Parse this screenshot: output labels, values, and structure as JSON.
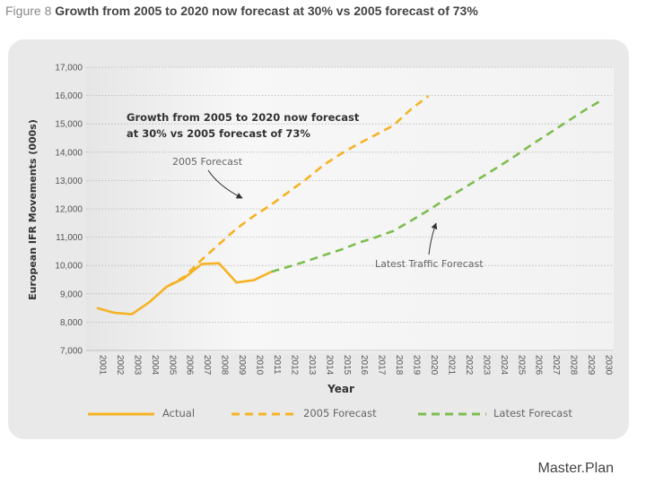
{
  "figure": {
    "number_label": "Figure 8",
    "title": "Growth from 2005 to 2020 now forecast at 30% vs 2005 forecast of 73%"
  },
  "footer": {
    "brand": "Master.Plan"
  },
  "colors": {
    "actual": "#f5b323",
    "forecast_2005": "#f5b323",
    "latest": "#7dbd4f",
    "panel": "#e9e9e9",
    "plot": "#f2f2f2"
  },
  "chart_data": {
    "type": "line",
    "title": "Growth from 2005 to 2020 now forecast at 30% vs 2005 forecast of 73%",
    "xlabel": "Year",
    "ylabel": "European IFR Movements (000s)",
    "ylim": [
      7000,
      17000
    ],
    "yticks": [
      "7,000",
      "8,000",
      "9,000",
      "10,000",
      "11,000",
      "12,000",
      "13,000",
      "14,000",
      "15,000",
      "16,000",
      "17,000"
    ],
    "categories": [
      "2001",
      "2002",
      "2003",
      "2004",
      "2005",
      "2006",
      "2007",
      "2008",
      "2009",
      "2010",
      "2011",
      "2012",
      "2013",
      "2014",
      "2015",
      "2016",
      "2017",
      "2018",
      "2019",
      "2020",
      "2021",
      "2022",
      "2023",
      "2024",
      "2025",
      "2026",
      "2027",
      "2028",
      "2029",
      "2030"
    ],
    "series": [
      {
        "name": "Actual",
        "style": "solid",
        "x": [
          2001,
          2002,
          2003,
          2004,
          2005,
          2006,
          2007,
          2008,
          2009,
          2010,
          2011
        ],
        "values": [
          8500,
          8330,
          8280,
          8700,
          9250,
          9550,
          10050,
          10080,
          9400,
          9480,
          9780
        ]
      },
      {
        "name": "2005 Forecast",
        "style": "dashed",
        "x": [
          2005,
          2006,
          2007,
          2008,
          2009,
          2010,
          2011,
          2012,
          2013,
          2014,
          2015,
          2016,
          2017,
          2018,
          2019,
          2020
        ],
        "values": [
          9250,
          9600,
          10200,
          10750,
          11300,
          11750,
          12150,
          12600,
          13050,
          13550,
          13950,
          14300,
          14620,
          14950,
          15520,
          15980
        ]
      },
      {
        "name": "Latest Forecast",
        "style": "dashed",
        "x": [
          2011,
          2012,
          2013,
          2014,
          2015,
          2016,
          2017,
          2018,
          2019,
          2020,
          2021,
          2022,
          2023,
          2024,
          2025,
          2026,
          2027,
          2028,
          2029,
          2030
        ],
        "values": [
          9780,
          9960,
          10150,
          10360,
          10560,
          10800,
          11000,
          11220,
          11580,
          11950,
          12350,
          12720,
          13100,
          13480,
          13880,
          14300,
          14700,
          15100,
          15500,
          15860
        ]
      }
    ],
    "annotations": {
      "headline_line1": "Growth from 2005 to 2020 now forecast",
      "headline_line2": "at 30% vs 2005 forecast of 73%",
      "label_2005": "2005 Forecast",
      "label_latest": "Latest Traffic Forecast"
    },
    "legend": [
      "Actual",
      "2005 Forecast",
      "Latest Forecast"
    ],
    "legend_position": "bottom"
  }
}
